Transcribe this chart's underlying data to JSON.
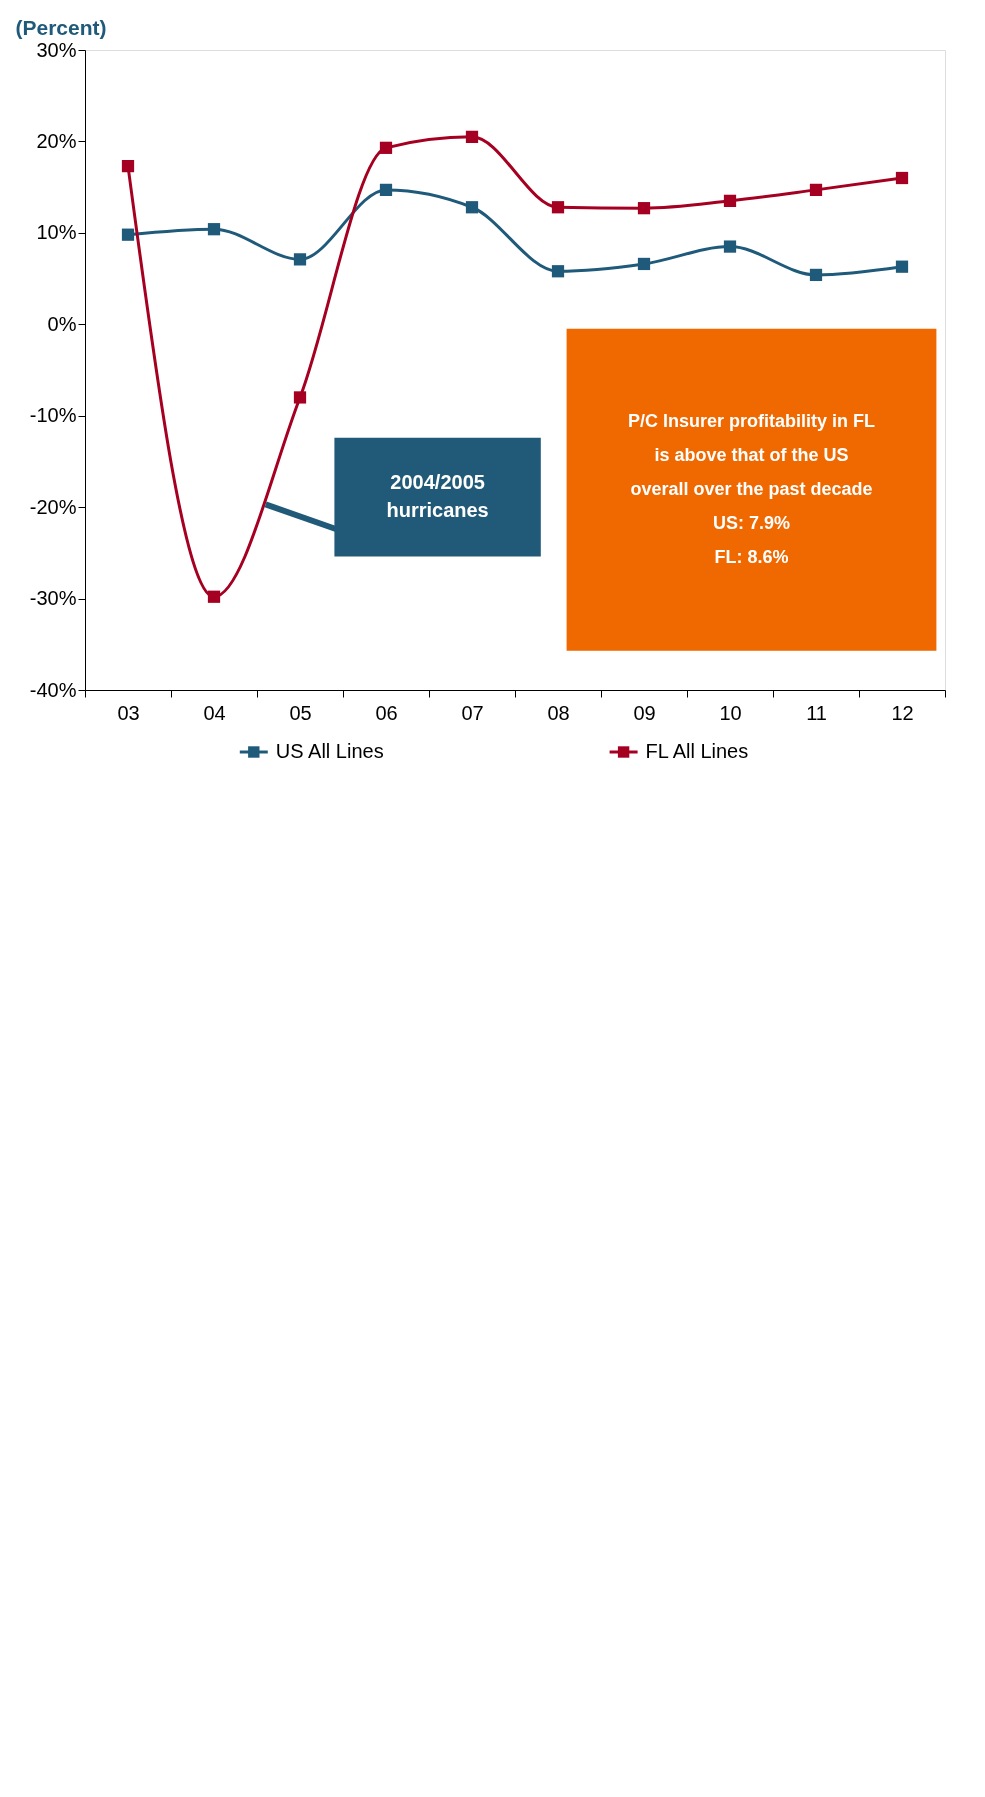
{
  "chart_data": {
    "type": "line",
    "categories": [
      "03",
      "04",
      "05",
      "06",
      "07",
      "08",
      "09",
      "10",
      "11",
      "12"
    ],
    "ylim": [
      -40,
      30
    ],
    "yticks": [
      {
        "value": -40,
        "label": "-40%"
      },
      {
        "value": -30,
        "label": "-30%"
      },
      {
        "value": -20,
        "label": "-20%"
      },
      {
        "value": -10,
        "label": "-10%"
      },
      {
        "value": 0,
        "label": "0%"
      },
      {
        "value": 10,
        "label": "10%"
      },
      {
        "value": 20,
        "label": "20%"
      },
      {
        "value": 30,
        "label": "30%"
      }
    ],
    "ylabel": "(Percent)",
    "legend": "bottom",
    "marker": "square",
    "grid": false,
    "series": [
      {
        "name": "US All Lines",
        "color": "#1f5a7a",
        "values": [
          9.8,
          10.4,
          7.1,
          14.7,
          12.8,
          5.8,
          6.6,
          8.5,
          5.4,
          6.3
        ]
      },
      {
        "name": "FL All Lines",
        "color": "#a50021",
        "values": [
          17.3,
          -29.8,
          -8.0,
          19.3,
          20.5,
          12.8,
          12.7,
          13.5,
          14.7,
          16.0
        ]
      }
    ],
    "annotations": [
      "P/C Insurer profitability in FL\nis above that of the US\noverall over the past decade\nUS: 7.9%\nFL: 8.6%",
      "2004/2005\nhurricanes"
    ]
  }
}
